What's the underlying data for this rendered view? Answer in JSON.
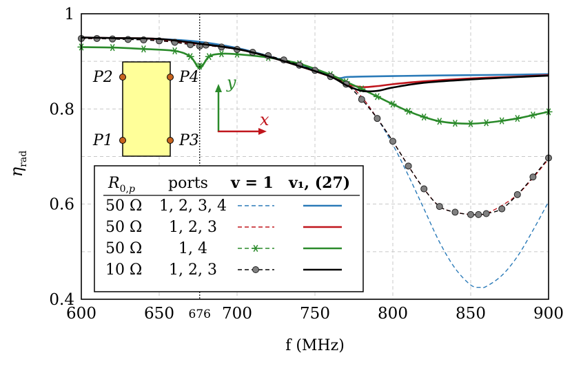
{
  "chart_data": {
    "type": "line",
    "xlabel": "f (MHz)",
    "ylabel": "η_rad",
    "xlim": [
      600,
      900
    ],
    "ylim": [
      0.4,
      1.0
    ],
    "x_ticks": [
      "600",
      "650",
      "676",
      "700",
      "750",
      "800",
      "850",
      "900"
    ],
    "y_ticks": [
      "0.4",
      "0.6",
      "0.8",
      "1"
    ],
    "marked_frequency": 676,
    "grid": true,
    "colors": {
      "blue": "#2a7ab8",
      "red": "#c0151c",
      "green": "#2a8a2a",
      "black": "#000000",
      "marker_gray": "#808080",
      "inset_fill": "#ffff99",
      "port_fill": "#c8641e"
    },
    "series": [
      {
        "color": "#2a7ab8",
        "dash": true,
        "marker": "none",
        "x": [
          600,
          620,
          650,
          676,
          700,
          720,
          740,
          760,
          770,
          780,
          790,
          800,
          810,
          820,
          830,
          840,
          850,
          856,
          860,
          870,
          880,
          890,
          900
        ],
        "y": [
          0.948,
          0.947,
          0.944,
          0.935,
          0.925,
          0.91,
          0.89,
          0.868,
          0.855,
          0.825,
          0.78,
          0.725,
          0.66,
          0.59,
          0.52,
          0.465,
          0.43,
          0.425,
          0.427,
          0.45,
          0.49,
          0.545,
          0.605
        ]
      },
      {
        "color": "#2a7ab8",
        "dash": false,
        "marker": "none",
        "x": [
          600,
          620,
          650,
          676,
          700,
          720,
          740,
          755,
          765,
          770,
          780,
          800,
          820,
          850,
          880,
          900
        ],
        "y": [
          0.95,
          0.949,
          0.947,
          0.941,
          0.928,
          0.911,
          0.892,
          0.876,
          0.865,
          0.867,
          0.868,
          0.869,
          0.87,
          0.871,
          0.872,
          0.873
        ]
      },
      {
        "color": "#c0151c",
        "dash": true,
        "marker": "none",
        "x": [
          600,
          620,
          650,
          676,
          700,
          720,
          740,
          760,
          770,
          780,
          790,
          800,
          810,
          820,
          830,
          840,
          850,
          855,
          860,
          870,
          880,
          890,
          900
        ],
        "y": [
          0.948,
          0.947,
          0.944,
          0.935,
          0.925,
          0.91,
          0.89,
          0.868,
          0.855,
          0.825,
          0.78,
          0.732,
          0.68,
          0.632,
          0.595,
          0.583,
          0.578,
          0.578,
          0.58,
          0.597,
          0.62,
          0.655,
          0.695
        ]
      },
      {
        "color": "#c0151c",
        "dash": false,
        "marker": "none",
        "x": [
          600,
          620,
          650,
          676,
          700,
          720,
          740,
          760,
          770,
          780,
          790,
          800,
          820,
          850,
          880,
          900
        ],
        "y": [
          0.95,
          0.949,
          0.947,
          0.937,
          0.926,
          0.91,
          0.89,
          0.868,
          0.853,
          0.846,
          0.848,
          0.852,
          0.858,
          0.864,
          0.868,
          0.871
        ]
      },
      {
        "color": "#2a8a2a",
        "dash": true,
        "marker": "star",
        "x": [
          600,
          620,
          640,
          660,
          670,
          676,
          682,
          690,
          700,
          720,
          740,
          760,
          770,
          780,
          790,
          800,
          810,
          820,
          830,
          840,
          850,
          860,
          870,
          880,
          890,
          900
        ],
        "y": [
          0.93,
          0.929,
          0.926,
          0.922,
          0.91,
          0.89,
          0.91,
          0.916,
          0.915,
          0.908,
          0.895,
          0.872,
          0.857,
          0.842,
          0.826,
          0.81,
          0.795,
          0.783,
          0.774,
          0.77,
          0.769,
          0.771,
          0.775,
          0.78,
          0.787,
          0.794
        ]
      },
      {
        "color": "#2a8a2a",
        "dash": false,
        "marker": "none",
        "x": [
          600,
          620,
          640,
          660,
          670,
          676,
          682,
          690,
          700,
          720,
          740,
          760,
          770,
          780,
          790,
          800,
          810,
          820,
          830,
          840,
          850,
          860,
          870,
          880,
          890,
          900
        ],
        "y": [
          0.93,
          0.929,
          0.926,
          0.922,
          0.91,
          0.886,
          0.91,
          0.916,
          0.915,
          0.908,
          0.895,
          0.872,
          0.857,
          0.842,
          0.826,
          0.81,
          0.795,
          0.783,
          0.774,
          0.77,
          0.769,
          0.771,
          0.775,
          0.78,
          0.787,
          0.794
        ]
      },
      {
        "color": "#000000",
        "dash": true,
        "marker": "circle",
        "x": [
          600,
          610,
          620,
          630,
          640,
          650,
          660,
          670,
          676,
          680,
          690,
          700,
          710,
          720,
          730,
          740,
          750,
          760,
          770,
          780,
          790,
          800,
          810,
          820,
          830,
          840,
          850,
          855,
          860,
          870,
          880,
          890,
          900
        ],
        "y": [
          0.948,
          0.948,
          0.947,
          0.946,
          0.945,
          0.943,
          0.94,
          0.935,
          0.932,
          0.934,
          0.93,
          0.925,
          0.919,
          0.912,
          0.903,
          0.892,
          0.881,
          0.868,
          0.852,
          0.82,
          0.78,
          0.732,
          0.68,
          0.632,
          0.595,
          0.583,
          0.578,
          0.578,
          0.58,
          0.59,
          0.62,
          0.657,
          0.697
        ]
      },
      {
        "color": "#000000",
        "dash": false,
        "marker": "none",
        "x": [
          600,
          620,
          650,
          676,
          700,
          720,
          740,
          760,
          770,
          780,
          790,
          800,
          820,
          850,
          880,
          900
        ],
        "y": [
          0.95,
          0.949,
          0.947,
          0.937,
          0.926,
          0.91,
          0.89,
          0.868,
          0.85,
          0.838,
          0.838,
          0.845,
          0.855,
          0.862,
          0.867,
          0.87
        ]
      }
    ],
    "legend": {
      "placement": "bottom-left",
      "headers": [
        "R₀,ₚ",
        "ports",
        "v = 1",
        "v₁, (27)"
      ],
      "rows": [
        {
          "r": "50 Ω",
          "ports": "1, 2, 3, 4",
          "color": "#2a7ab8",
          "marker": "none"
        },
        {
          "r": "50 Ω",
          "ports": "1, 2, 3",
          "color": "#c0151c",
          "marker": "none"
        },
        {
          "r": "50 Ω",
          "ports": "1, 4",
          "color": "#2a8a2a",
          "marker": "star"
        },
        {
          "r": "10 Ω",
          "ports": "1, 2, 3",
          "color": "#000000",
          "marker": "circle"
        }
      ]
    },
    "inset": {
      "ports": [
        "P2",
        "P4",
        "P1",
        "P3"
      ],
      "axis_x": "x",
      "axis_y": "y"
    }
  }
}
